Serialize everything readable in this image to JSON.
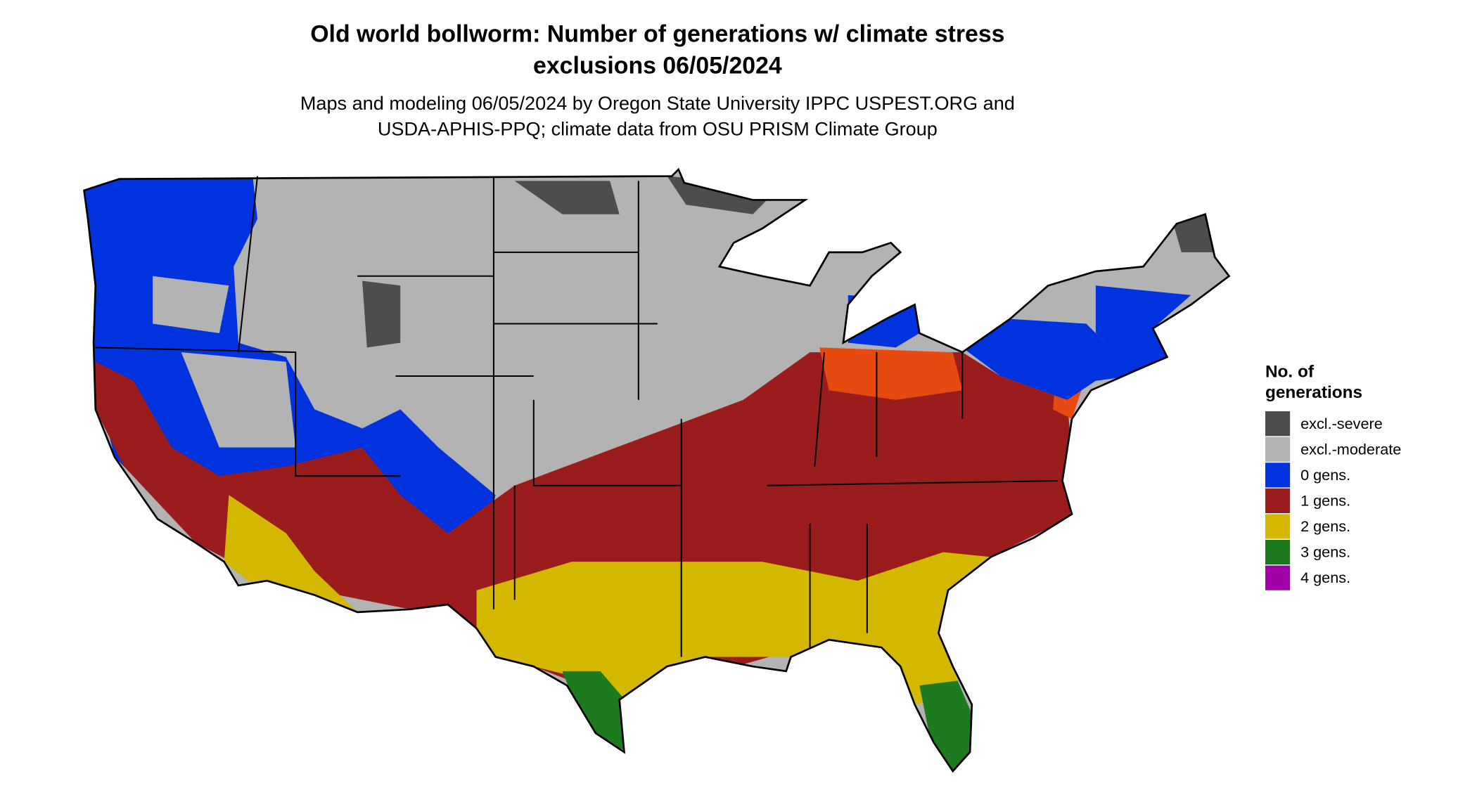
{
  "title": [
    "Old world bollworm: Number of generations w/ climate stress",
    "exclusions 06/05/2024"
  ],
  "subtitle": [
    "Maps and modeling 06/05/2024 by Oregon State University IPPC USPEST.ORG and",
    "USDA-APHIS-PPQ; climate data from OSU PRISM Climate Group"
  ],
  "legend": {
    "title": [
      "No. of",
      "generations"
    ],
    "items": [
      {
        "label": "excl.-severe",
        "color": "#4d4d4d"
      },
      {
        "label": "excl.-moderate",
        "color": "#b3b3b3"
      },
      {
        "label": "0 gens.",
        "color": "#0033dd"
      },
      {
        "label": "1 gens.",
        "color": "#9b1c1c"
      },
      {
        "label": "2 gens.",
        "color": "#d4b800"
      },
      {
        "label": "3 gens.",
        "color": "#1e7a1e"
      },
      {
        "label": "4 gens.",
        "color": "#a000a8"
      }
    ]
  }
}
